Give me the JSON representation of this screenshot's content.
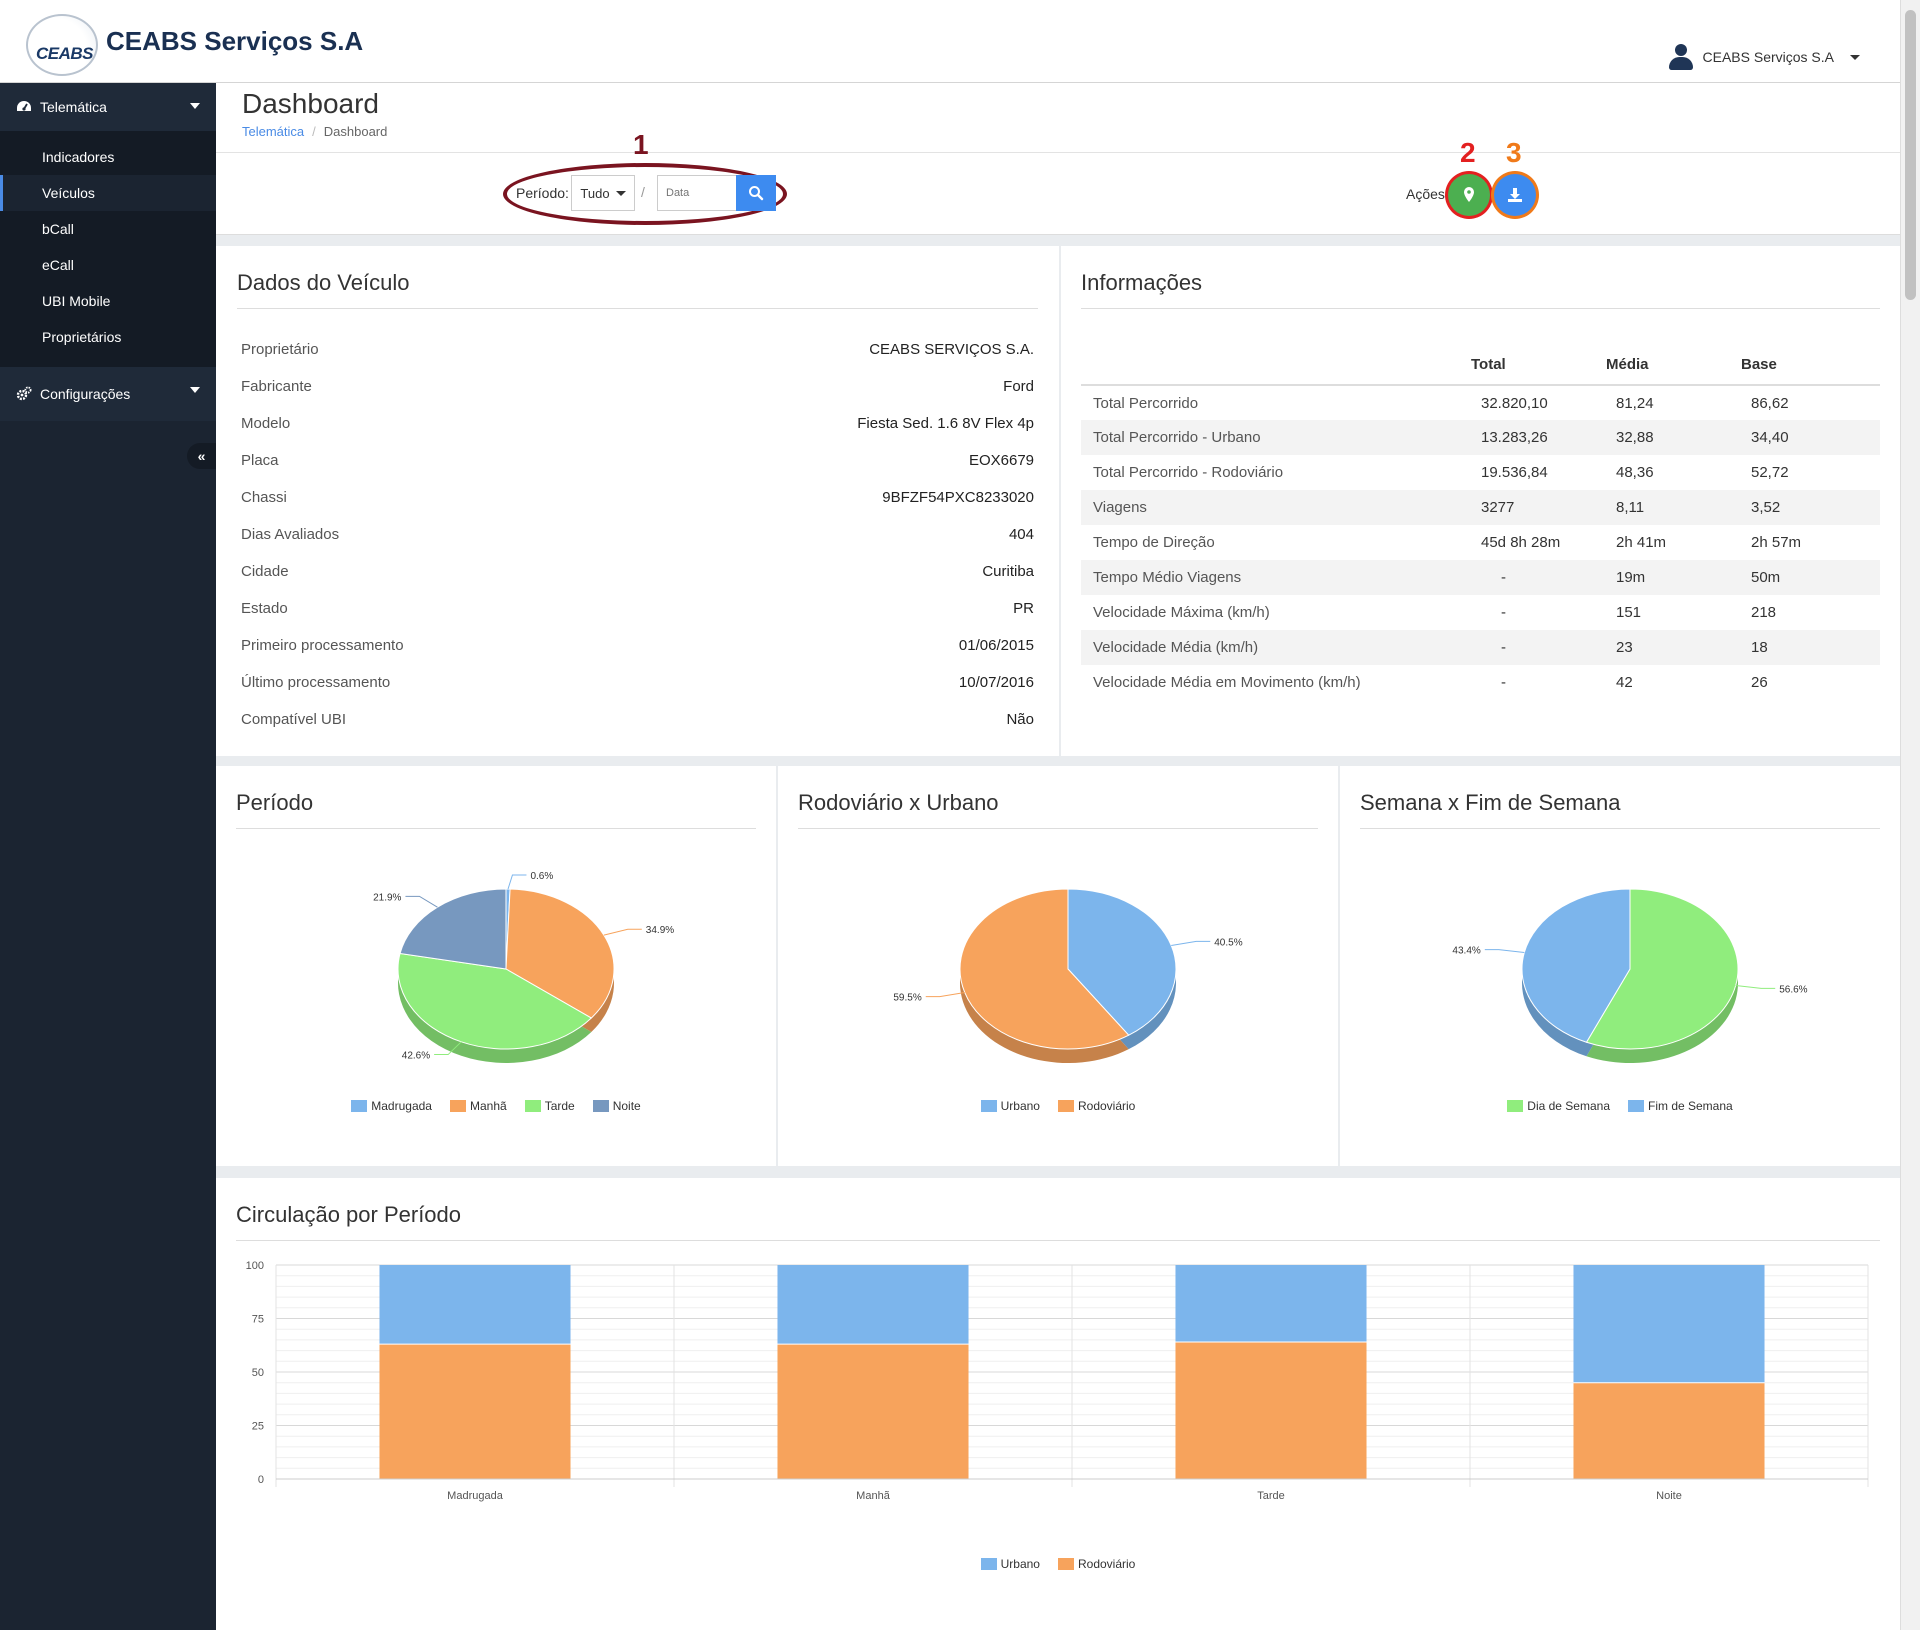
{
  "app": {
    "brand_logo_text": "CEABS",
    "brand_name": "CEABS Serviços S.A",
    "user_name": "CEABS Serviços S.A"
  },
  "sidebar": {
    "groups": [
      {
        "label": "Telemática",
        "icon": "dashboard-icon"
      },
      {
        "label": "Configurações",
        "icon": "gears-icon"
      }
    ],
    "items": [
      "Indicadores",
      "Veículos",
      "bCall",
      "eCall",
      "UBI Mobile",
      "Proprietários"
    ],
    "active": "Veículos"
  },
  "header": {
    "title": "Dashboard",
    "breadcrumb": [
      "Telemática",
      "Dashboard"
    ]
  },
  "filter": {
    "period_label": "Período:",
    "period_value": "Tudo",
    "slash": "/",
    "date_placeholder": "Data",
    "actions_label": "Ações:",
    "annotations": [
      "1",
      "2",
      "3"
    ]
  },
  "vehicle": {
    "title": "Dados do Veículo",
    "rows": [
      {
        "k": "Proprietário",
        "v": "CEABS SERVIÇOS S.A."
      },
      {
        "k": "Fabricante",
        "v": "Ford"
      },
      {
        "k": "Modelo",
        "v": "Fiesta Sed. 1.6 8V Flex 4p"
      },
      {
        "k": "Placa",
        "v": "EOX6679"
      },
      {
        "k": "Chassi",
        "v": "9BFZF54PXC8233020"
      },
      {
        "k": "Dias Avaliados",
        "v": "404"
      },
      {
        "k": "Cidade",
        "v": "Curitiba"
      },
      {
        "k": "Estado",
        "v": "PR"
      },
      {
        "k": "Primeiro processamento",
        "v": "01/06/2015"
      },
      {
        "k": "Último processamento",
        "v": "10/07/2016"
      },
      {
        "k": "Compatível UBI",
        "v": "Não"
      }
    ]
  },
  "info": {
    "title": "Informações",
    "columns": [
      "",
      "Total",
      "Média",
      "Base"
    ],
    "rows": [
      [
        "Total Percorrido",
        "32.820,10",
        "81,24",
        "86,62"
      ],
      [
        "Total Percorrido - Urbano",
        "13.283,26",
        "32,88",
        "34,40"
      ],
      [
        "Total Percorrido - Rodoviário",
        "19.536,84",
        "48,36",
        "52,72"
      ],
      [
        "Viagens",
        "3277",
        "8,11",
        "3,52"
      ],
      [
        "Tempo de Direção",
        "45d 8h 28m",
        "2h 41m",
        "2h 57m"
      ],
      [
        "Tempo Médio Viagens",
        "-",
        "19m",
        "50m"
      ],
      [
        "Velocidade Máxima (km/h)",
        "-",
        "151",
        "218"
      ],
      [
        "Velocidade Média (km/h)",
        "-",
        "23",
        "18"
      ],
      [
        "Velocidade Média em Movimento (km/h)",
        "-",
        "42",
        "26"
      ]
    ]
  },
  "colors": {
    "madrugada": "#7cb5ec",
    "manha": "#f7a35c",
    "tarde": "#90ed7d",
    "noite": "#7798bf",
    "urbano": "#7cb5ec",
    "rodoviario": "#f7a35c",
    "dia_semana": "#90ed7d",
    "fim_semana": "#7cb5ec",
    "primary": "#3d8bf0",
    "success": "#4caf50"
  },
  "chart_data": [
    {
      "type": "pie",
      "title": "Período",
      "labels": [
        "Madrugada",
        "Manhã",
        "Tarde",
        "Noite"
      ],
      "values": [
        0.6,
        34.9,
        42.6,
        21.9
      ],
      "data_labels": [
        "0.6%",
        "34.9%",
        "42.6%",
        "21.9%"
      ],
      "legend": "bottom"
    },
    {
      "type": "pie",
      "title": "Rodoviário x Urbano",
      "labels": [
        "Urbano",
        "Rodoviário"
      ],
      "values": [
        40.5,
        59.5
      ],
      "data_labels": [
        "40.5%",
        "59.5%"
      ],
      "legend": "bottom"
    },
    {
      "type": "pie",
      "title": "Semana x Fim de Semana",
      "labels": [
        "Dia de Semana",
        "Fim de Semana"
      ],
      "values": [
        56.6,
        43.4
      ],
      "data_labels": [
        "56.6%",
        "43.4%"
      ],
      "legend": "bottom"
    },
    {
      "type": "bar",
      "stacked": true,
      "percent": true,
      "title": "Circulação por Período",
      "categories": [
        "Madrugada",
        "Manhã",
        "Tarde",
        "Noite"
      ],
      "series": [
        {
          "name": "Urbano",
          "values": [
            37,
            37,
            36,
            55
          ]
        },
        {
          "name": "Rodoviário",
          "values": [
            63,
            63,
            64,
            45
          ]
        }
      ],
      "yticks": [
        "0",
        "25",
        "50",
        "75",
        "100"
      ],
      "ylim": [
        0,
        100
      ],
      "grid": true,
      "legend": "bottom"
    }
  ]
}
